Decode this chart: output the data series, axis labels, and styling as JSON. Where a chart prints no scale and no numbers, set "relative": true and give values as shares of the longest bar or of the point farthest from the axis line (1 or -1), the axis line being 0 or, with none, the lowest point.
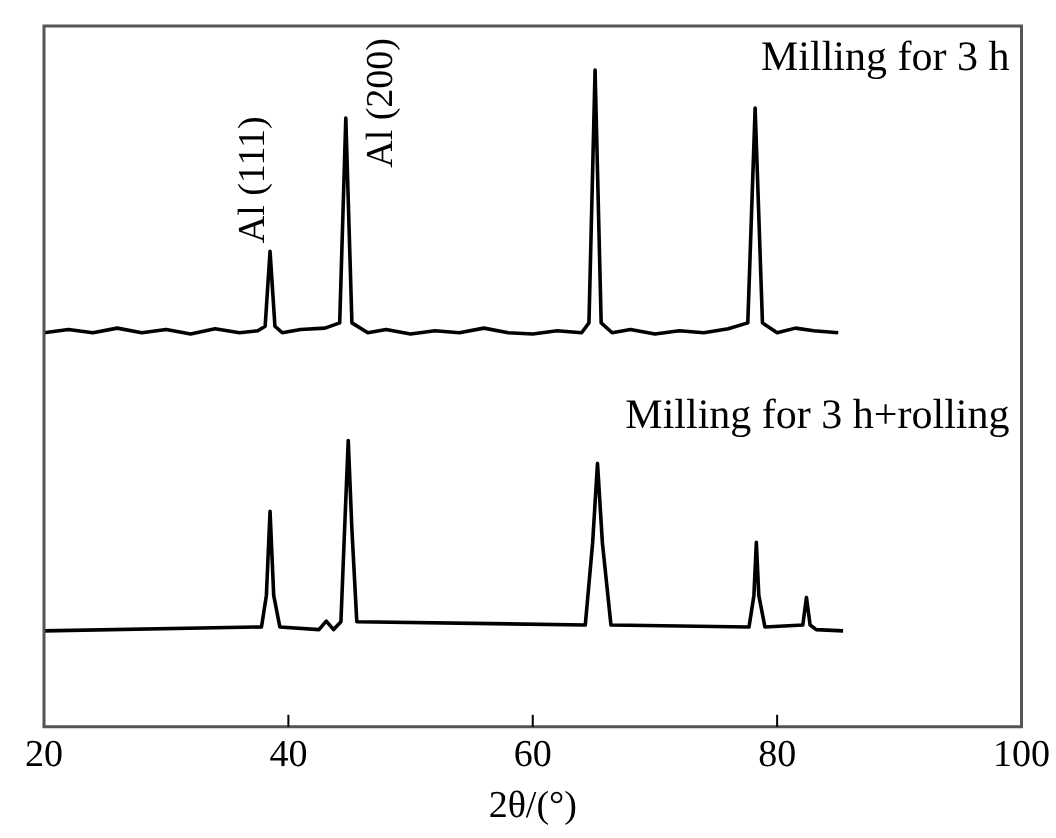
{
  "chart_data": {
    "type": "line",
    "relative": true,
    "xlabel": "2θ/(°)",
    "xlim": [
      20,
      100
    ],
    "xticks": [
      20,
      40,
      60,
      80,
      100
    ],
    "grid": false,
    "legend": false,
    "marker": "none",
    "line_style": "solid",
    "annotations": [
      "Al (111)",
      "Al (200)"
    ],
    "series": [
      {
        "name": "Milling for 3 h",
        "color": "#000000",
        "x": [
          20,
          22,
          24,
          26,
          28,
          30,
          32,
          34,
          36,
          37.5,
          38.1,
          38.5,
          38.9,
          39.5,
          41,
          43,
          44.2,
          44.7,
          45.2,
          46.5,
          48,
          50,
          52,
          54,
          56,
          58,
          60,
          62,
          64,
          64.6,
          65.1,
          65.6,
          66.5,
          68,
          70,
          72,
          74,
          76,
          77.6,
          78.2,
          78.8,
          80,
          81.5,
          83,
          85
        ],
        "values": [
          0.6,
          0.605,
          0.6,
          0.607,
          0.6,
          0.605,
          0.598,
          0.606,
          0.6,
          0.603,
          0.61,
          0.724,
          0.61,
          0.6,
          0.605,
          0.607,
          0.615,
          0.927,
          0.615,
          0.6,
          0.605,
          0.598,
          0.603,
          0.6,
          0.607,
          0.6,
          0.598,
          0.603,
          0.6,
          0.615,
          1,
          0.615,
          0.6,
          0.605,
          0.598,
          0.603,
          0.6,
          0.606,
          0.615,
          0.942,
          0.615,
          0.6,
          0.607,
          0.603,
          0.6
        ]
      },
      {
        "name": "Milling for 3 h+rolling",
        "color": "#000000",
        "x": [
          20,
          37.8,
          38.2,
          38.5,
          38.8,
          39.3,
          42.5,
          43.1,
          43.7,
          44.3,
          44.6,
          44.9,
          45.2,
          45.6,
          64.3,
          64.9,
          65.3,
          65.7,
          66.4,
          77.7,
          78.1,
          78.3,
          78.5,
          79,
          82.1,
          82.4,
          82.7,
          83.2,
          85.4
        ],
        "values": [
          0.146,
          0.152,
          0.2,
          0.328,
          0.2,
          0.152,
          0.148,
          0.161,
          0.148,
          0.16,
          0.3,
          0.436,
          0.3,
          0.16,
          0.155,
          0.28,
          0.401,
          0.28,
          0.155,
          0.152,
          0.2,
          0.281,
          0.2,
          0.152,
          0.155,
          0.197,
          0.155,
          0.148,
          0.146
        ]
      }
    ]
  }
}
